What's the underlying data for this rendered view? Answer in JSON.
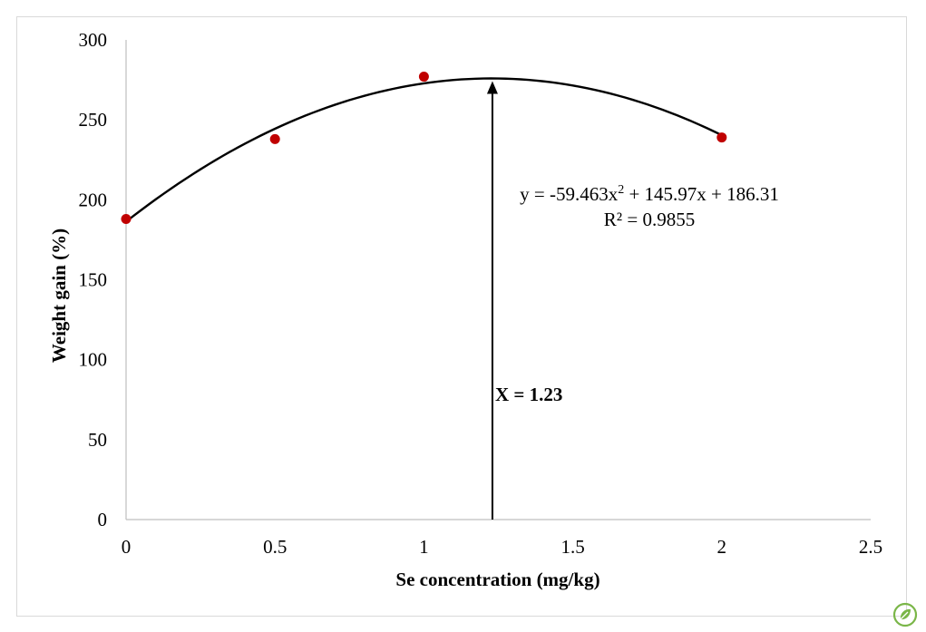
{
  "chart_data": {
    "type": "scatter",
    "xlabel": "Se concentration  (mg/kg)",
    "ylabel": "Weight  gain (%)",
    "xlim": [
      0,
      2.5
    ],
    "ylim": [
      0,
      300
    ],
    "x_ticks": [
      "0",
      "0.5",
      "1",
      "1.5",
      "2",
      "2.5"
    ],
    "y_ticks": [
      "0",
      "50",
      "100",
      "150",
      "200",
      "250",
      "300"
    ],
    "grid": false,
    "points": [
      {
        "x": 0,
        "y": 188
      },
      {
        "x": 0.5,
        "y": 238
      },
      {
        "x": 1,
        "y": 277
      },
      {
        "x": 2,
        "y": 239
      }
    ],
    "marker_color": "#c00000",
    "trendline": {
      "type": "polynomial",
      "order": 2,
      "coefficients": [
        -59.463,
        145.97,
        186.31
      ],
      "x_range": [
        0,
        2
      ],
      "color": "#000000"
    },
    "annotations": {
      "equation_prefix": "y = -59.463x",
      "equation_sup": "2",
      "equation_suffix": " + 145.97x + 186.31",
      "r_squared": "R² = 0.9855",
      "optimum_label": "X = 1.23",
      "optimum_x": 1.23
    }
  },
  "logo": {
    "icon": "leaf-logo-icon",
    "color": "#7ab648"
  }
}
